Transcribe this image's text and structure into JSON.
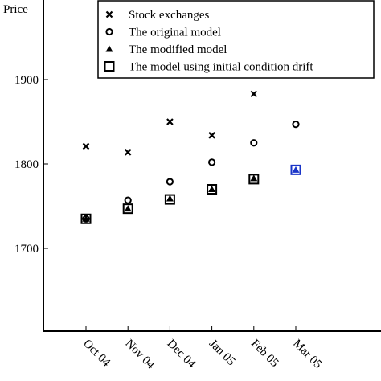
{
  "chart_data": {
    "type": "scatter",
    "y_label": "Price",
    "categories": [
      "Oct 04",
      "Nov 04",
      "Dec 04",
      "Jan 05",
      "Feb 05",
      "Mar 05"
    ],
    "ylim": [
      1600,
      2000
    ],
    "yticks": [
      1700,
      1800,
      1900
    ],
    "legend": "top-right",
    "series": [
      {
        "name": "Stock exchanges",
        "marker": "x",
        "color": "#000000",
        "values": [
          1821,
          1814,
          1850,
          1834,
          1883,
          null
        ]
      },
      {
        "name": "The original model",
        "marker": "circle",
        "color": "#000000",
        "values": [
          1735,
          1757,
          1779,
          1802,
          1825,
          1847
        ]
      },
      {
        "name": "The modified model",
        "marker": "triangle",
        "color": "#000000",
        "values": [
          1735,
          1747,
          1759,
          1770,
          1783,
          1793
        ],
        "point_colors": [
          "#000000",
          "#000000",
          "#000000",
          "#000000",
          "#000000",
          "#1a35c8"
        ]
      },
      {
        "name": "The model using initial condition drift",
        "marker": "square",
        "color": "#000000",
        "values": [
          1735,
          1747,
          1758,
          1770,
          1782,
          1793
        ],
        "point_colors": [
          "#000000",
          "#000000",
          "#000000",
          "#000000",
          "#000000",
          "#1a35c8"
        ]
      }
    ]
  }
}
